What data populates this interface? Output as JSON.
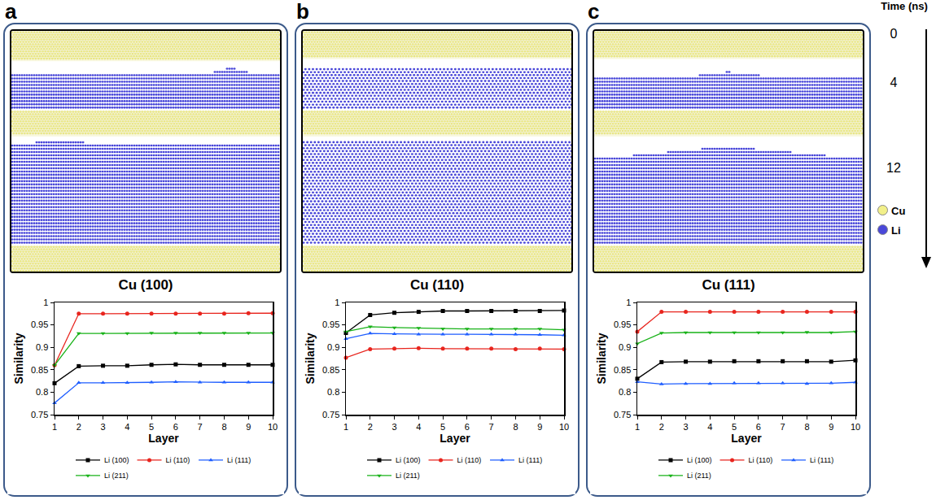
{
  "panel_letters": [
    "a",
    "b",
    "c"
  ],
  "time": {
    "title": "Time (ns)",
    "labels": [
      "0",
      "4",
      "12"
    ]
  },
  "species": [
    {
      "name": "Cu",
      "color": "#f2f08a"
    },
    {
      "name": "Li",
      "color": "#4a48d9"
    }
  ],
  "chart_data": [
    {
      "type": "line",
      "title": "Cu (100)",
      "xlabel": "Layer",
      "ylabel": "Similarity",
      "x": [
        1,
        2,
        3,
        4,
        5,
        6,
        7,
        8,
        9,
        10
      ],
      "xlim": [
        1,
        10
      ],
      "xticks": [
        1,
        2,
        3,
        4,
        5,
        6,
        7,
        8,
        9,
        10
      ],
      "ylim": [
        0.75,
        1
      ],
      "yticks": [
        0.75,
        0.8,
        0.85,
        0.9,
        0.95,
        1
      ],
      "grid": false,
      "legend": "bottom",
      "series": [
        {
          "name": "Li (100)",
          "color": "#000000",
          "marker": "square",
          "line_style": "solid",
          "values": [
            0.82,
            0.858,
            0.859,
            0.859,
            0.861,
            0.862,
            0.861,
            0.861,
            0.861,
            0.861
          ]
        },
        {
          "name": "Li (110)",
          "color": "#e8251e",
          "marker": "circle",
          "line_style": "solid",
          "values": [
            0.86,
            0.975,
            0.975,
            0.975,
            0.975,
            0.975,
            0.975,
            0.975,
            0.976,
            0.976
          ]
        },
        {
          "name": "Li (111)",
          "color": "#1f5eff",
          "marker": "triangle-up",
          "line_style": "solid",
          "values": [
            0.776,
            0.821,
            0.821,
            0.821,
            0.822,
            0.823,
            0.822,
            0.822,
            0.822,
            0.822
          ]
        },
        {
          "name": "Li (211)",
          "color": "#18b218",
          "marker": "triangle-down",
          "line_style": "solid",
          "values": [
            0.86,
            0.931,
            0.931,
            0.931,
            0.932,
            0.932,
            0.932,
            0.932,
            0.932,
            0.932
          ]
        }
      ]
    },
    {
      "type": "line",
      "title": "Cu (110)",
      "xlabel": "Layer",
      "ylabel": "Similarity",
      "x": [
        1,
        2,
        3,
        4,
        5,
        6,
        7,
        8,
        9,
        10
      ],
      "xlim": [
        1,
        10
      ],
      "xticks": [
        1,
        2,
        3,
        4,
        5,
        6,
        7,
        8,
        9,
        10
      ],
      "ylim": [
        0.75,
        1
      ],
      "yticks": [
        0.75,
        0.8,
        0.85,
        0.9,
        0.95,
        1
      ],
      "grid": false,
      "legend": "bottom",
      "series": [
        {
          "name": "Li (100)",
          "color": "#000000",
          "marker": "square",
          "line_style": "solid",
          "values": [
            0.932,
            0.972,
            0.977,
            0.979,
            0.981,
            0.981,
            0.981,
            0.981,
            0.981,
            0.982
          ]
        },
        {
          "name": "Li (110)",
          "color": "#e8251e",
          "marker": "circle",
          "line_style": "solid",
          "values": [
            0.877,
            0.896,
            0.897,
            0.898,
            0.897,
            0.897,
            0.897,
            0.896,
            0.897,
            0.896
          ]
        },
        {
          "name": "Li (111)",
          "color": "#1f5eff",
          "marker": "triangle-up",
          "line_style": "solid",
          "values": [
            0.919,
            0.931,
            0.93,
            0.929,
            0.929,
            0.929,
            0.929,
            0.929,
            0.928,
            0.927
          ]
        },
        {
          "name": "Li (211)",
          "color": "#18b218",
          "marker": "triangle-down",
          "line_style": "solid",
          "values": [
            0.935,
            0.946,
            0.944,
            0.943,
            0.941,
            0.941,
            0.941,
            0.941,
            0.941,
            0.939
          ]
        }
      ]
    },
    {
      "type": "line",
      "title": "Cu (111)",
      "xlabel": "Layer",
      "ylabel": "Similarity",
      "x": [
        1,
        2,
        3,
        4,
        5,
        6,
        7,
        8,
        9,
        10
      ],
      "xlim": [
        1,
        10
      ],
      "xticks": [
        1,
        2,
        3,
        4,
        5,
        6,
        7,
        8,
        9,
        10
      ],
      "ylim": [
        0.75,
        1
      ],
      "yticks": [
        0.75,
        0.8,
        0.85,
        0.9,
        0.95,
        1
      ],
      "grid": false,
      "legend": "bottom",
      "series": [
        {
          "name": "Li (100)",
          "color": "#000000",
          "marker": "square",
          "line_style": "solid",
          "values": [
            0.83,
            0.867,
            0.868,
            0.868,
            0.869,
            0.869,
            0.869,
            0.869,
            0.868,
            0.871
          ]
        },
        {
          "name": "Li (110)",
          "color": "#e8251e",
          "marker": "circle",
          "line_style": "solid",
          "values": [
            0.935,
            0.979,
            0.979,
            0.979,
            0.979,
            0.979,
            0.979,
            0.979,
            0.979,
            0.979
          ]
        },
        {
          "name": "Li (111)",
          "color": "#1f5eff",
          "marker": "triangle-up",
          "line_style": "solid",
          "values": [
            0.823,
            0.818,
            0.819,
            0.819,
            0.82,
            0.82,
            0.82,
            0.819,
            0.82,
            0.822
          ]
        },
        {
          "name": "Li (211)",
          "color": "#18b218",
          "marker": "triangle-down",
          "line_style": "solid",
          "values": [
            0.908,
            0.932,
            0.933,
            0.933,
            0.933,
            0.933,
            0.933,
            0.934,
            0.933,
            0.935
          ]
        }
      ]
    }
  ]
}
